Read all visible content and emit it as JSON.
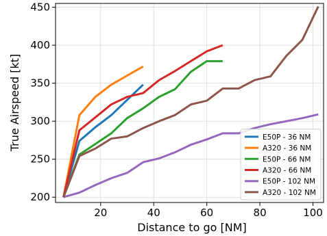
{
  "chart_data": {
    "type": "line",
    "xlabel": "Distance to go [NM]",
    "ylabel": "True Airspeed [kt]",
    "xlim": [
      3,
      104
    ],
    "ylim": [
      193,
      455
    ],
    "xticks": [
      20,
      40,
      60,
      80,
      100
    ],
    "yticks": [
      200,
      250,
      300,
      350,
      400,
      450
    ],
    "grid": true,
    "legend_position": "lower-right",
    "series": [
      {
        "name": "E50P - 36 NM",
        "color": "#1f77b4",
        "x": [
          6,
          12,
          18,
          24,
          30,
          36
        ],
        "y": [
          200,
          274,
          292,
          308,
          328,
          348
        ]
      },
      {
        "name": "A320 - 36 NM",
        "color": "#ff7f0e",
        "x": [
          6,
          12,
          18,
          24,
          30,
          36
        ],
        "y": [
          200,
          308,
          332,
          348,
          360,
          372
        ]
      },
      {
        "name": "E50P - 66 NM",
        "color": "#2ca02c",
        "x": [
          6,
          12,
          18,
          24,
          30,
          36,
          42,
          48,
          54,
          60,
          66
        ],
        "y": [
          200,
          256,
          270,
          284,
          304,
          317,
          332,
          342,
          365,
          379,
          379
        ]
      },
      {
        "name": "A320 - 66 NM",
        "color": "#d62728",
        "x": [
          6,
          12,
          18,
          24,
          30,
          36,
          42,
          48,
          54,
          60,
          66
        ],
        "y": [
          200,
          288,
          305,
          322,
          332,
          337,
          354,
          366,
          379,
          392,
          400
        ]
      },
      {
        "name": "E50P - 102 NM",
        "color": "#9467bd",
        "x": [
          6,
          12,
          18,
          24,
          30,
          36,
          42,
          48,
          54,
          60,
          66,
          72,
          78,
          84,
          90,
          96,
          102
        ],
        "y": [
          200,
          206,
          216,
          225,
          232,
          246,
          251,
          259,
          269,
          276,
          284,
          284,
          291,
          296,
          300,
          304,
          309
        ]
      },
      {
        "name": "A320 - 102 NM",
        "color": "#8c564b",
        "x": [
          6,
          12,
          18,
          24,
          30,
          36,
          42,
          48,
          54,
          60,
          66,
          72,
          78,
          84,
          90,
          96,
          102
        ],
        "y": [
          200,
          254,
          264,
          277,
          280,
          291,
          300,
          308,
          322,
          327,
          343,
          343,
          354,
          359,
          386,
          407,
          451
        ]
      }
    ]
  }
}
